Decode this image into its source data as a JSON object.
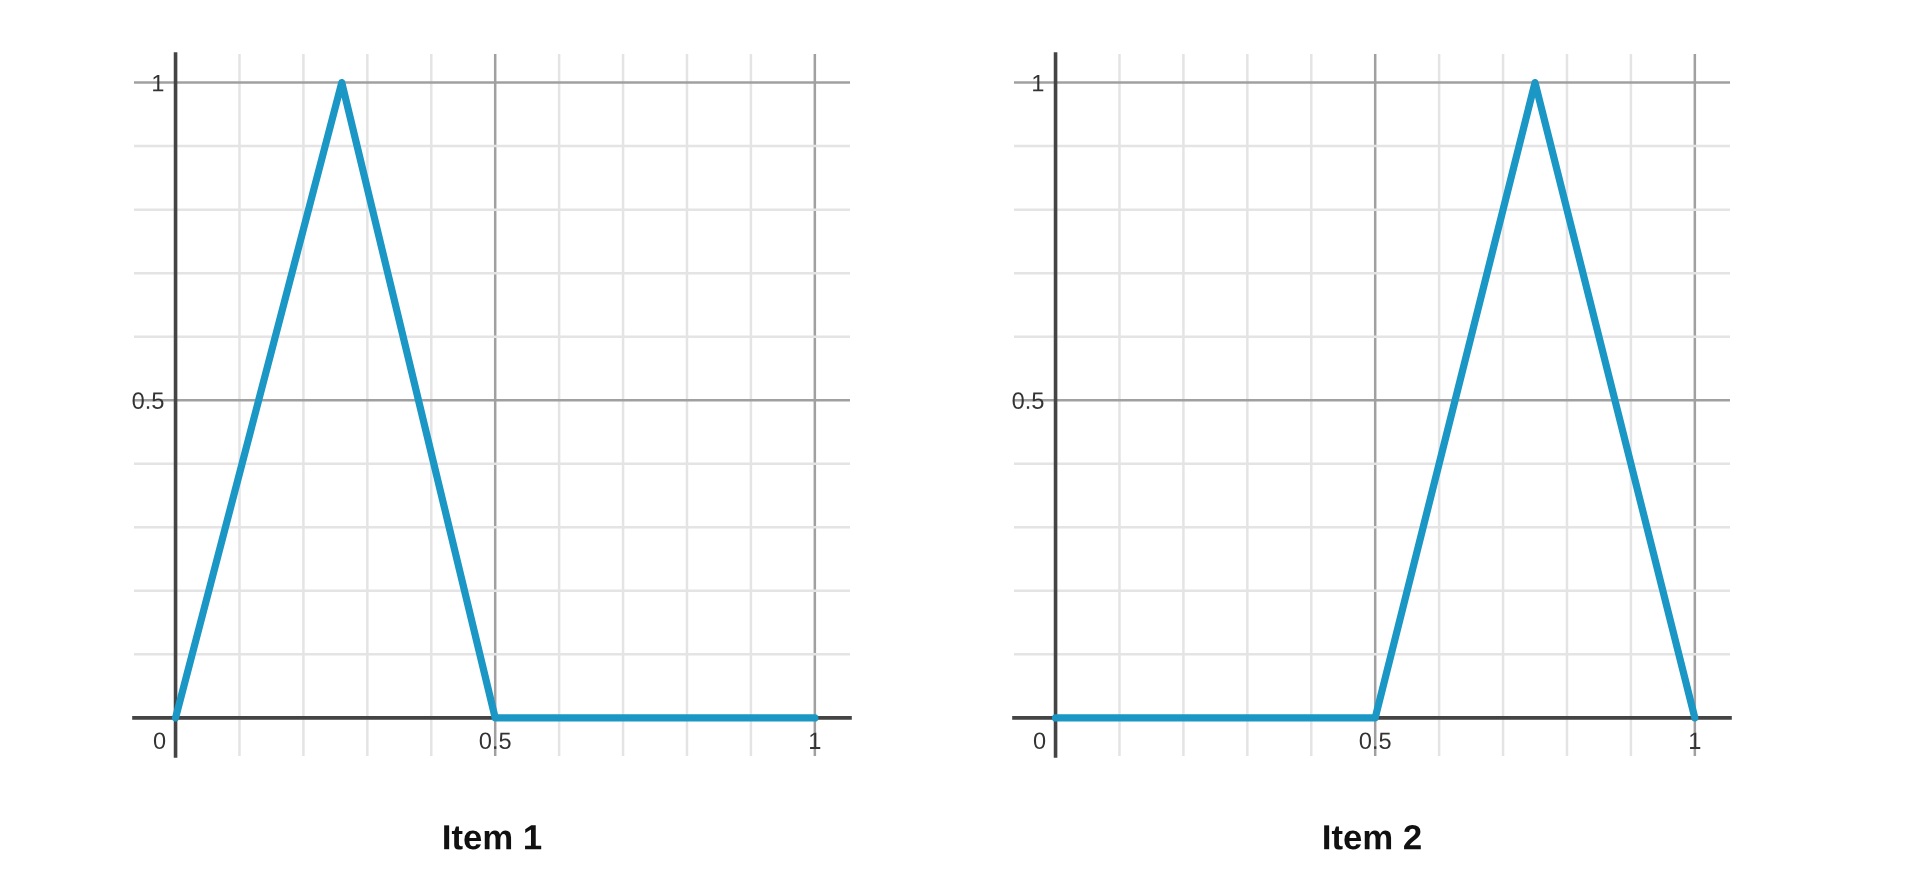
{
  "chart_data": [
    {
      "type": "line",
      "title": "Item 1",
      "x": [
        0,
        0.26,
        0.5,
        1
      ],
      "values": [
        0,
        1,
        0,
        0
      ],
      "color": "#1a97c5",
      "xlim": [
        -0.065,
        1.055
      ],
      "ylim": [
        -0.06,
        1.045
      ],
      "xticks": [
        {
          "value": 0,
          "label": "0"
        },
        {
          "value": 0.1,
          "label": null
        },
        {
          "value": 0.2,
          "label": null
        },
        {
          "value": 0.3,
          "label": null
        },
        {
          "value": 0.4,
          "label": null
        },
        0.5,
        {
          "value": 0.6,
          "label": null
        },
        {
          "value": 0.7,
          "label": null
        },
        {
          "value": 0.8,
          "label": null
        },
        {
          "value": 0.9,
          "label": null
        },
        1
      ],
      "yticks": [
        {
          "value": 0,
          "label": null
        },
        {
          "value": 0.1,
          "label": null
        },
        {
          "value": 0.2,
          "label": null
        },
        {
          "value": 0.3,
          "label": null
        },
        {
          "value": 0.4,
          "label": null
        },
        0.5,
        {
          "value": 0.6,
          "label": null
        },
        {
          "value": 0.7,
          "label": null
        },
        {
          "value": 0.8,
          "label": null
        },
        {
          "value": 0.9,
          "label": null
        },
        1
      ],
      "grid": true
    },
    {
      "type": "line",
      "title": "Item 2",
      "x": [
        0,
        0.5,
        0.75,
        1
      ],
      "values": [
        0,
        0,
        1,
        0
      ],
      "color": "#1a97c5",
      "xlim": [
        -0.065,
        1.055
      ],
      "ylim": [
        -0.06,
        1.045
      ],
      "xticks": [
        {
          "value": 0,
          "label": "0"
        },
        {
          "value": 0.1,
          "label": null
        },
        {
          "value": 0.2,
          "label": null
        },
        {
          "value": 0.3,
          "label": null
        },
        {
          "value": 0.4,
          "label": null
        },
        0.5,
        {
          "value": 0.6,
          "label": null
        },
        {
          "value": 0.7,
          "label": null
        },
        {
          "value": 0.8,
          "label": null
        },
        {
          "value": 0.9,
          "label": null
        },
        1
      ],
      "yticks": [
        {
          "value": 0,
          "label": null
        },
        {
          "value": 0.1,
          "label": null
        },
        {
          "value": 0.2,
          "label": null
        },
        {
          "value": 0.3,
          "label": null
        },
        {
          "value": 0.4,
          "label": null
        },
        0.5,
        {
          "value": 0.6,
          "label": null
        },
        {
          "value": 0.7,
          "label": null
        },
        {
          "value": 0.8,
          "label": null
        },
        {
          "value": 0.9,
          "label": null
        },
        1
      ],
      "grid": true
    }
  ]
}
